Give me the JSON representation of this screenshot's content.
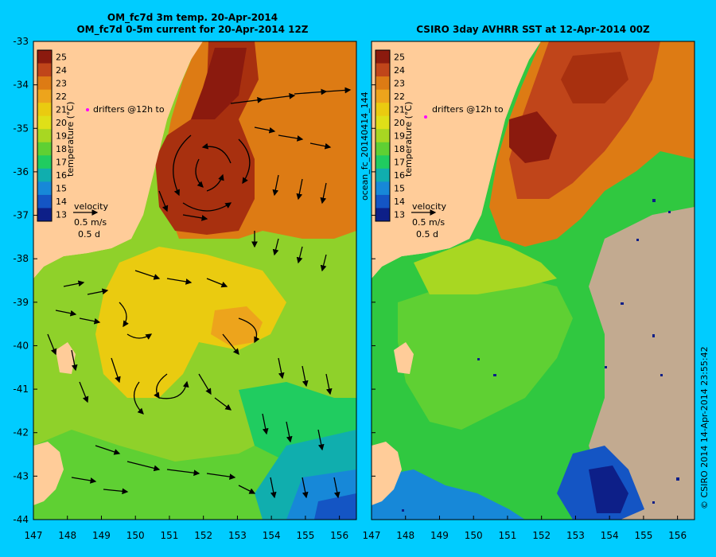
{
  "left_panel": {
    "title_line1": "OM_fc7d 3m temp. 20-Apr-2014",
    "title_line2": "OM_fc7d 0-5m current for 20-Apr-2014 12Z",
    "velocity_label": "velocity",
    "velocity_speed": "0.5 m/s",
    "velocity_time": "0.5 d",
    "drifters_label": "drifters @12h to"
  },
  "right_panel": {
    "title": "CSIRO 3day AVHRR SST at 12-Apr-2014 00Z",
    "velocity_label": "velocity",
    "velocity_speed": "0.5 m/s",
    "velocity_time": "0.5 d",
    "drifters_label": "drifters @12h to",
    "vertical_label": "ocean_fc_20140414_144"
  },
  "colorbar": {
    "label": "temperature (°C)",
    "ticks": [
      25,
      24,
      23,
      22,
      21,
      20,
      19,
      18,
      17,
      16,
      15,
      14,
      13
    ],
    "colors": [
      "#8b1a0e",
      "#c0451a",
      "#dd7b14",
      "#eda41c",
      "#eacb10",
      "#dfe018",
      "#a8d722",
      "#5fd033",
      "#20cc60",
      "#10aeae",
      "#1788d8",
      "#1455c4",
      "#0d1f88"
    ]
  },
  "axes": {
    "y_ticks": [
      "-33",
      "-34",
      "-35",
      "-36",
      "-37",
      "-38",
      "-39",
      "-40",
      "-41",
      "-42",
      "-43",
      "-44"
    ],
    "x_ticks": [
      "147",
      "148",
      "149",
      "150",
      "151",
      "152",
      "153",
      "154",
      "155",
      "156"
    ]
  },
  "footer_label": "© CSIRO 2014   14-Apr-2014 23:55:42"
}
